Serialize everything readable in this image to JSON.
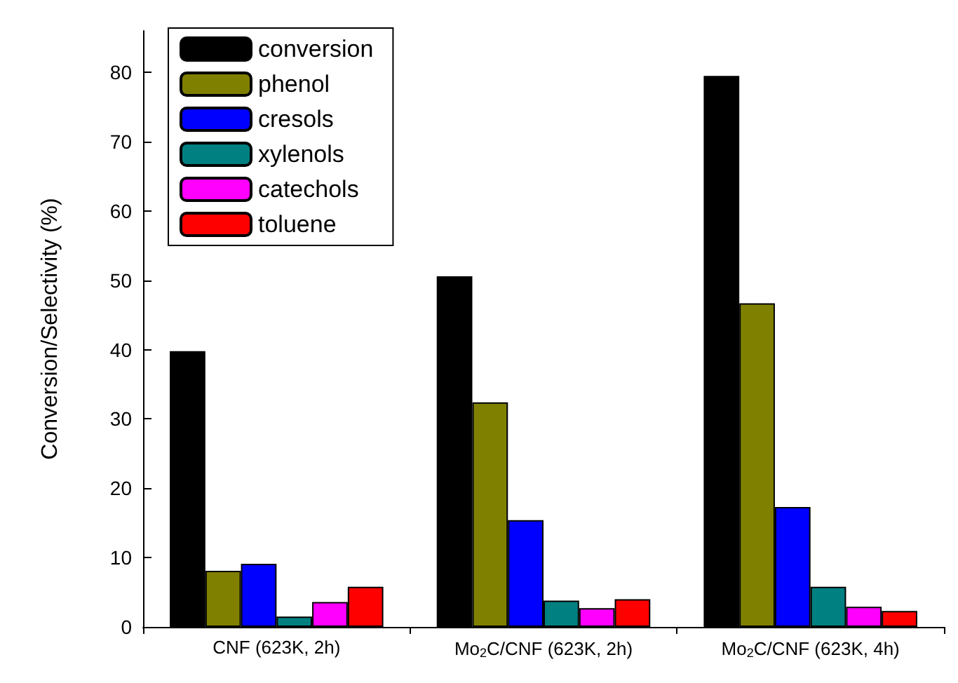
{
  "chart_data": {
    "type": "bar",
    "ylabel": "Conversion/Selectivity (%)",
    "categories": [
      "CNF (623K, 2h)",
      "Mo$_{2}$C/CNF (623K, 2h)",
      "Mo$_{2}$C/CNF (623K, 4h)"
    ],
    "series": [
      {
        "name": "conversion",
        "color": "#000000",
        "values": [
          39.8,
          50.6,
          79.5
        ]
      },
      {
        "name": "phenol",
        "color": "#808000",
        "values": [
          8.1,
          32.4,
          46.7
        ]
      },
      {
        "name": "cresols",
        "color": "#0000ff",
        "values": [
          9.1,
          15.4,
          17.3
        ]
      },
      {
        "name": "xylenols",
        "color": "#008080",
        "values": [
          1.5,
          3.8,
          5.8
        ]
      },
      {
        "name": "catechols",
        "color": "#ff00ff",
        "values": [
          3.6,
          2.7,
          2.9
        ]
      },
      {
        "name": "toluene",
        "color": "#ff0000",
        "values": [
          5.8,
          4.0,
          2.3
        ]
      }
    ],
    "ylim": [
      0,
      86
    ],
    "yticks": [
      0,
      10,
      20,
      30,
      40,
      50,
      60,
      70,
      80
    ],
    "grid": false,
    "legend": "top left"
  }
}
